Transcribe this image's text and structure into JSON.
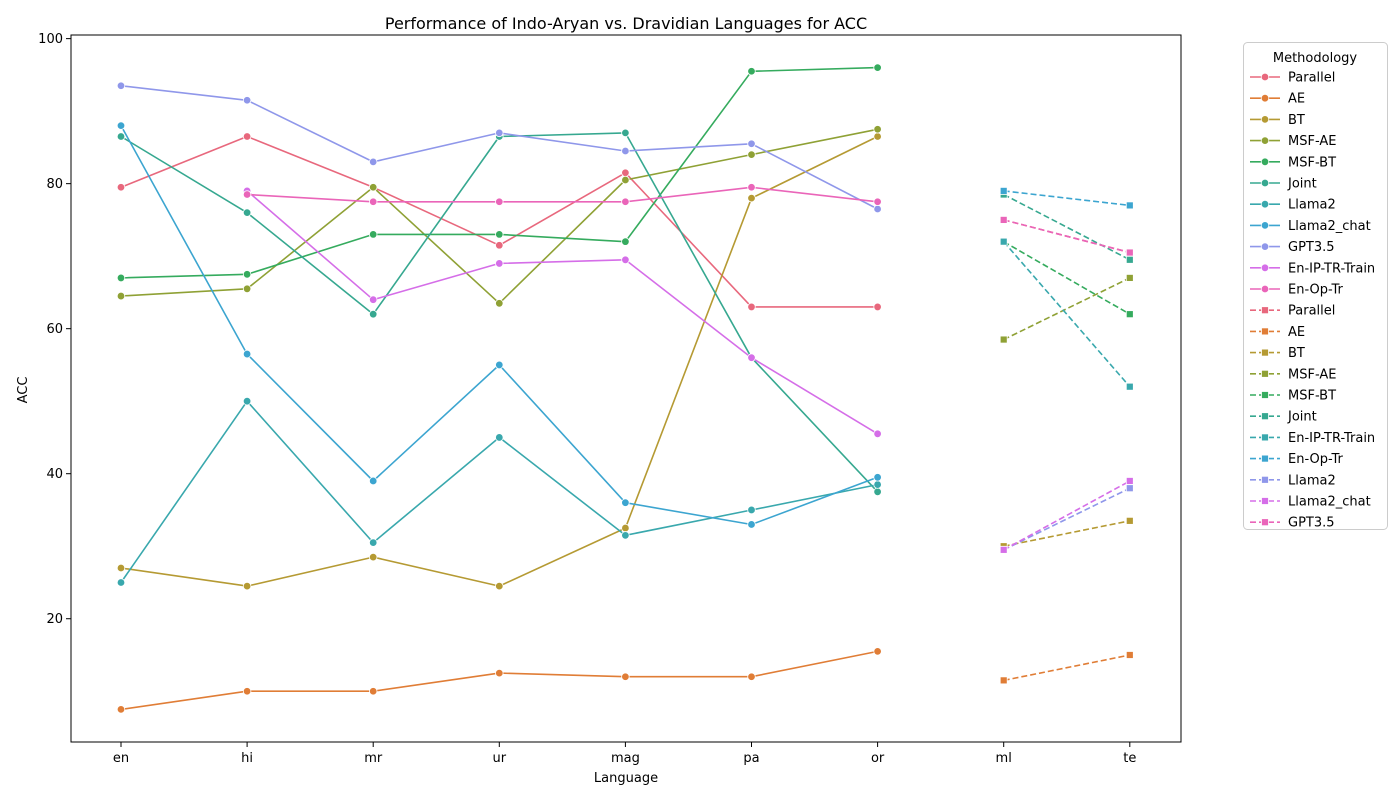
{
  "chart_data": {
    "type": "line",
    "title": "Performance of Indo-Aryan vs. Dravidian Languages for ACC",
    "xlabel": "Language",
    "ylabel": "ACC",
    "categories": [
      "en",
      "hi",
      "mr",
      "ur",
      "mag",
      "pa",
      "or",
      "ml",
      "te"
    ],
    "ylim": [
      3,
      100.5
    ],
    "yticks": [
      20,
      40,
      60,
      80,
      100
    ],
    "grid": false,
    "legend": {
      "title": "Methodology",
      "placement": "outside-right"
    },
    "indo_aryan": {
      "categories": [
        "en",
        "hi",
        "mr",
        "ur",
        "mag",
        "pa",
        "or"
      ],
      "line_style": "solid",
      "marker": "circle",
      "series": [
        {
          "name": "Parallel",
          "color": "#e8687d",
          "values": [
            79.5,
            86.5,
            79.5,
            71.5,
            81.5,
            63,
            63
          ]
        },
        {
          "name": "AE",
          "color": "#e07d36",
          "values": [
            7.5,
            10,
            10,
            12.5,
            12,
            12,
            15.5
          ]
        },
        {
          "name": "BT",
          "color": "#b59a33",
          "values": [
            27,
            24.5,
            28.5,
            24.5,
            32.5,
            78,
            86.5
          ]
        },
        {
          "name": "MSF-AE",
          "color": "#8fa135",
          "values": [
            64.5,
            65.5,
            79.5,
            63.5,
            80.5,
            84,
            87.5
          ]
        },
        {
          "name": "MSF-BT",
          "color": "#35ab5e",
          "values": [
            67,
            67.5,
            73,
            73,
            72,
            95.5,
            96
          ]
        },
        {
          "name": "Joint",
          "color": "#36a890",
          "values": [
            86.5,
            76,
            62,
            86.5,
            87,
            56,
            37.5
          ]
        },
        {
          "name": "Llama2",
          "color": "#39a8ad",
          "values": [
            25,
            50,
            30.5,
            45,
            31.5,
            35,
            38.5
          ]
        },
        {
          "name": "Llama2_chat",
          "color": "#3ca5d0",
          "values": [
            88,
            56.5,
            39,
            55,
            36,
            33,
            39.5
          ]
        },
        {
          "name": "GPT3.5",
          "color": "#8f97ea",
          "values": [
            93.5,
            91.5,
            83,
            87,
            84.5,
            85.5,
            76.5
          ]
        },
        {
          "name": "En-IP-TR-Train",
          "color": "#d56ee8",
          "values": [
            null,
            79,
            64,
            69,
            69.5,
            56,
            45.5
          ]
        },
        {
          "name": "En-Op-Tr",
          "color": "#ea65b9",
          "values": [
            null,
            78.5,
            77.5,
            77.5,
            77.5,
            79.5,
            77.5
          ]
        }
      ]
    },
    "dravidian": {
      "categories": [
        "ml",
        "te"
      ],
      "line_style": "dashed",
      "marker": "square",
      "series": [
        {
          "name": "Parallel",
          "color": "#e8687d",
          "values": [
            75,
            70.5
          ]
        },
        {
          "name": "AE",
          "color": "#e07d36",
          "values": [
            11.5,
            15
          ]
        },
        {
          "name": "BT",
          "color": "#b59a33",
          "values": [
            30,
            33.5
          ]
        },
        {
          "name": "MSF-AE",
          "color": "#8fa135",
          "values": [
            58.5,
            67
          ]
        },
        {
          "name": "MSF-BT",
          "color": "#35ab5e",
          "values": [
            72,
            62
          ]
        },
        {
          "name": "Joint",
          "color": "#36a890",
          "values": [
            78.5,
            69.5
          ]
        },
        {
          "name": "En-IP-TR-Train",
          "color": "#39a8ad",
          "values": [
            72,
            52
          ]
        },
        {
          "name": "En-Op-Tr",
          "color": "#3ca5d0",
          "values": [
            79,
            77
          ]
        },
        {
          "name": "Llama2",
          "color": "#8f97ea",
          "values": [
            29.5,
            38
          ]
        },
        {
          "name": "Llama2_chat",
          "color": "#d56ee8",
          "values": [
            29.5,
            39
          ]
        },
        {
          "name": "GPT3.5",
          "color": "#ea65b9",
          "values": [
            75,
            70.5
          ]
        }
      ]
    }
  }
}
